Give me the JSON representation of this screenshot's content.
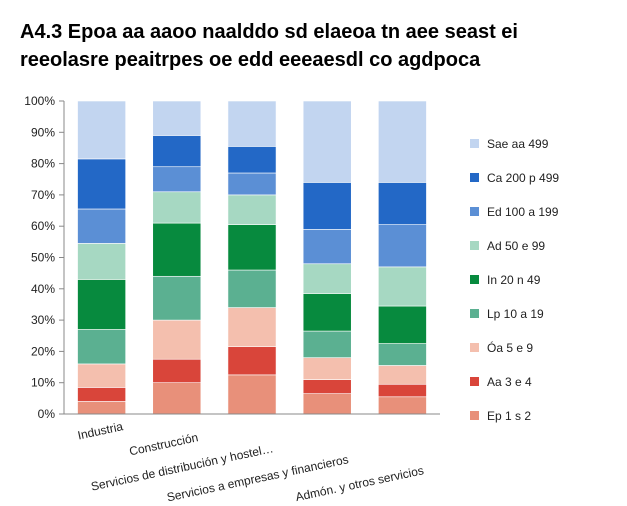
{
  "chart_data": {
    "type": "bar",
    "stacked": true,
    "title": "A4.3 Epoa aa aaoo naalddo sd elaeoa tn aee seast ei reeolasre peaitrpes oe edd eeeaesdl co agdpoca",
    "xlabel": "",
    "ylabel": "",
    "ylim": [
      0,
      100
    ],
    "y_ticks": [
      "0%",
      "10%",
      "20%",
      "30%",
      "40%",
      "50%",
      "60%",
      "70%",
      "80%",
      "90%",
      "100%"
    ],
    "grid": false,
    "legend_position": "right",
    "categories": [
      "Industria",
      "Construcción",
      "Servicios de distribución y hostel…",
      "Servicios a empresas y financieros",
      "Admón. y otros servicios"
    ],
    "series": [
      {
        "name": "Ep 1 s 2",
        "color": "#E8907A",
        "values": [
          4,
          10,
          12.5,
          6.5,
          5.5
        ]
      },
      {
        "name": "Aa 3 e 4",
        "color": "#D9453A",
        "values": [
          4.5,
          7.5,
          9,
          4.5,
          4
        ]
      },
      {
        "name": "Óa 5 e 9",
        "color": "#F4BFAE",
        "values": [
          7.5,
          12.5,
          12.5,
          7,
          6
        ]
      },
      {
        "name": "Lp 10 a 19",
        "color": "#5BB091",
        "values": [
          11,
          14,
          12,
          8.5,
          7
        ]
      },
      {
        "name": "In 20 n 49",
        "color": "#078A3E",
        "values": [
          16,
          17,
          14.5,
          12,
          12
        ]
      },
      {
        "name": "Ad 50 e 99",
        "color": "#A6D8C2",
        "values": [
          11.5,
          10,
          9.5,
          9.5,
          12.5
        ]
      },
      {
        "name": "Ed 100 a 199",
        "color": "#5B8FD5",
        "values": [
          11,
          8,
          7,
          11,
          13.5
        ]
      },
      {
        "name": "Ca 200 p 499",
        "color": "#2368C6",
        "values": [
          16,
          10,
          8.5,
          15,
          13.5
        ]
      },
      {
        "name": "Sae aa 499",
        "color": "#C2D5F0",
        "values": [
          18.5,
          11,
          14.5,
          26,
          26
        ]
      }
    ]
  }
}
